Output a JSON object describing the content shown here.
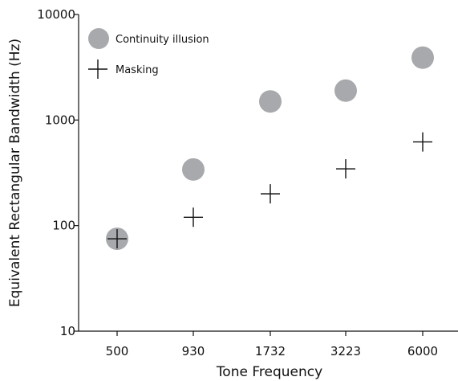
{
  "chart_data": {
    "type": "scatter",
    "title": "",
    "xlabel": "Tone Frequency",
    "ylabel": "Equivalent Rectangular Bandwidth (Hz)",
    "yscale": "log",
    "ylim": [
      10,
      10000
    ],
    "categories": [
      "500",
      "930",
      "1732",
      "3223",
      "6000"
    ],
    "yticks": [
      10,
      100,
      1000,
      10000
    ],
    "ytick_labels": [
      "10",
      "100",
      "1000",
      "10000"
    ],
    "grid": false,
    "legend_position": "top-left",
    "series": [
      {
        "name": "Continuity illusion",
        "marker": "circle",
        "color": "#a7a9ac",
        "values": [
          75,
          340,
          1500,
          1900,
          3900
        ]
      },
      {
        "name": "Masking",
        "marker": "plus",
        "color": "#111111",
        "values": [
          75,
          120,
          200,
          345,
          620
        ]
      }
    ]
  }
}
